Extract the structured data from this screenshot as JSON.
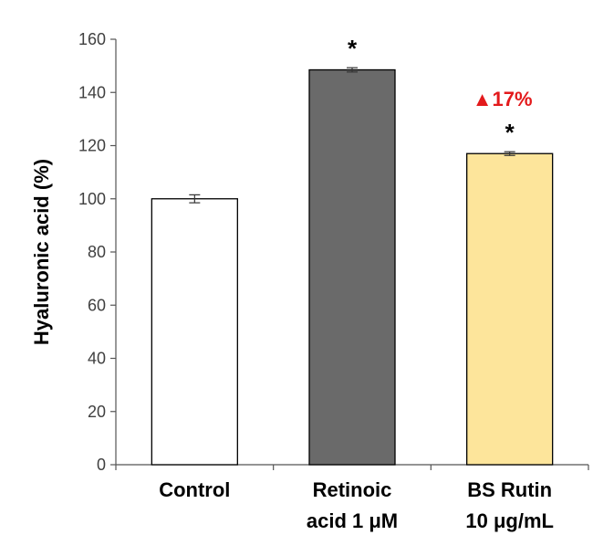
{
  "chart_data": {
    "type": "bar",
    "ylabel": "Hyaluronic acid (%)",
    "ylim": [
      0,
      160
    ],
    "yticks": [
      0,
      20,
      40,
      60,
      80,
      100,
      120,
      140,
      160
    ],
    "grid": false,
    "categories": [
      [
        "Control"
      ],
      [
        "Retinoic",
        "acid 1 μM"
      ],
      [
        "BS Rutin",
        "10 μg/mL"
      ]
    ],
    "values": [
      100,
      148.5,
      117
    ],
    "errors": [
      1.5,
      0.8,
      0.7
    ],
    "bar_colors": [
      "#ffffff",
      "#6a6a6a",
      "#fde59b"
    ],
    "significance": [
      "",
      "*",
      "*"
    ],
    "annotations": [
      {
        "bar_index": 2,
        "text": "▲17%",
        "color": "#e31a1c"
      }
    ]
  }
}
